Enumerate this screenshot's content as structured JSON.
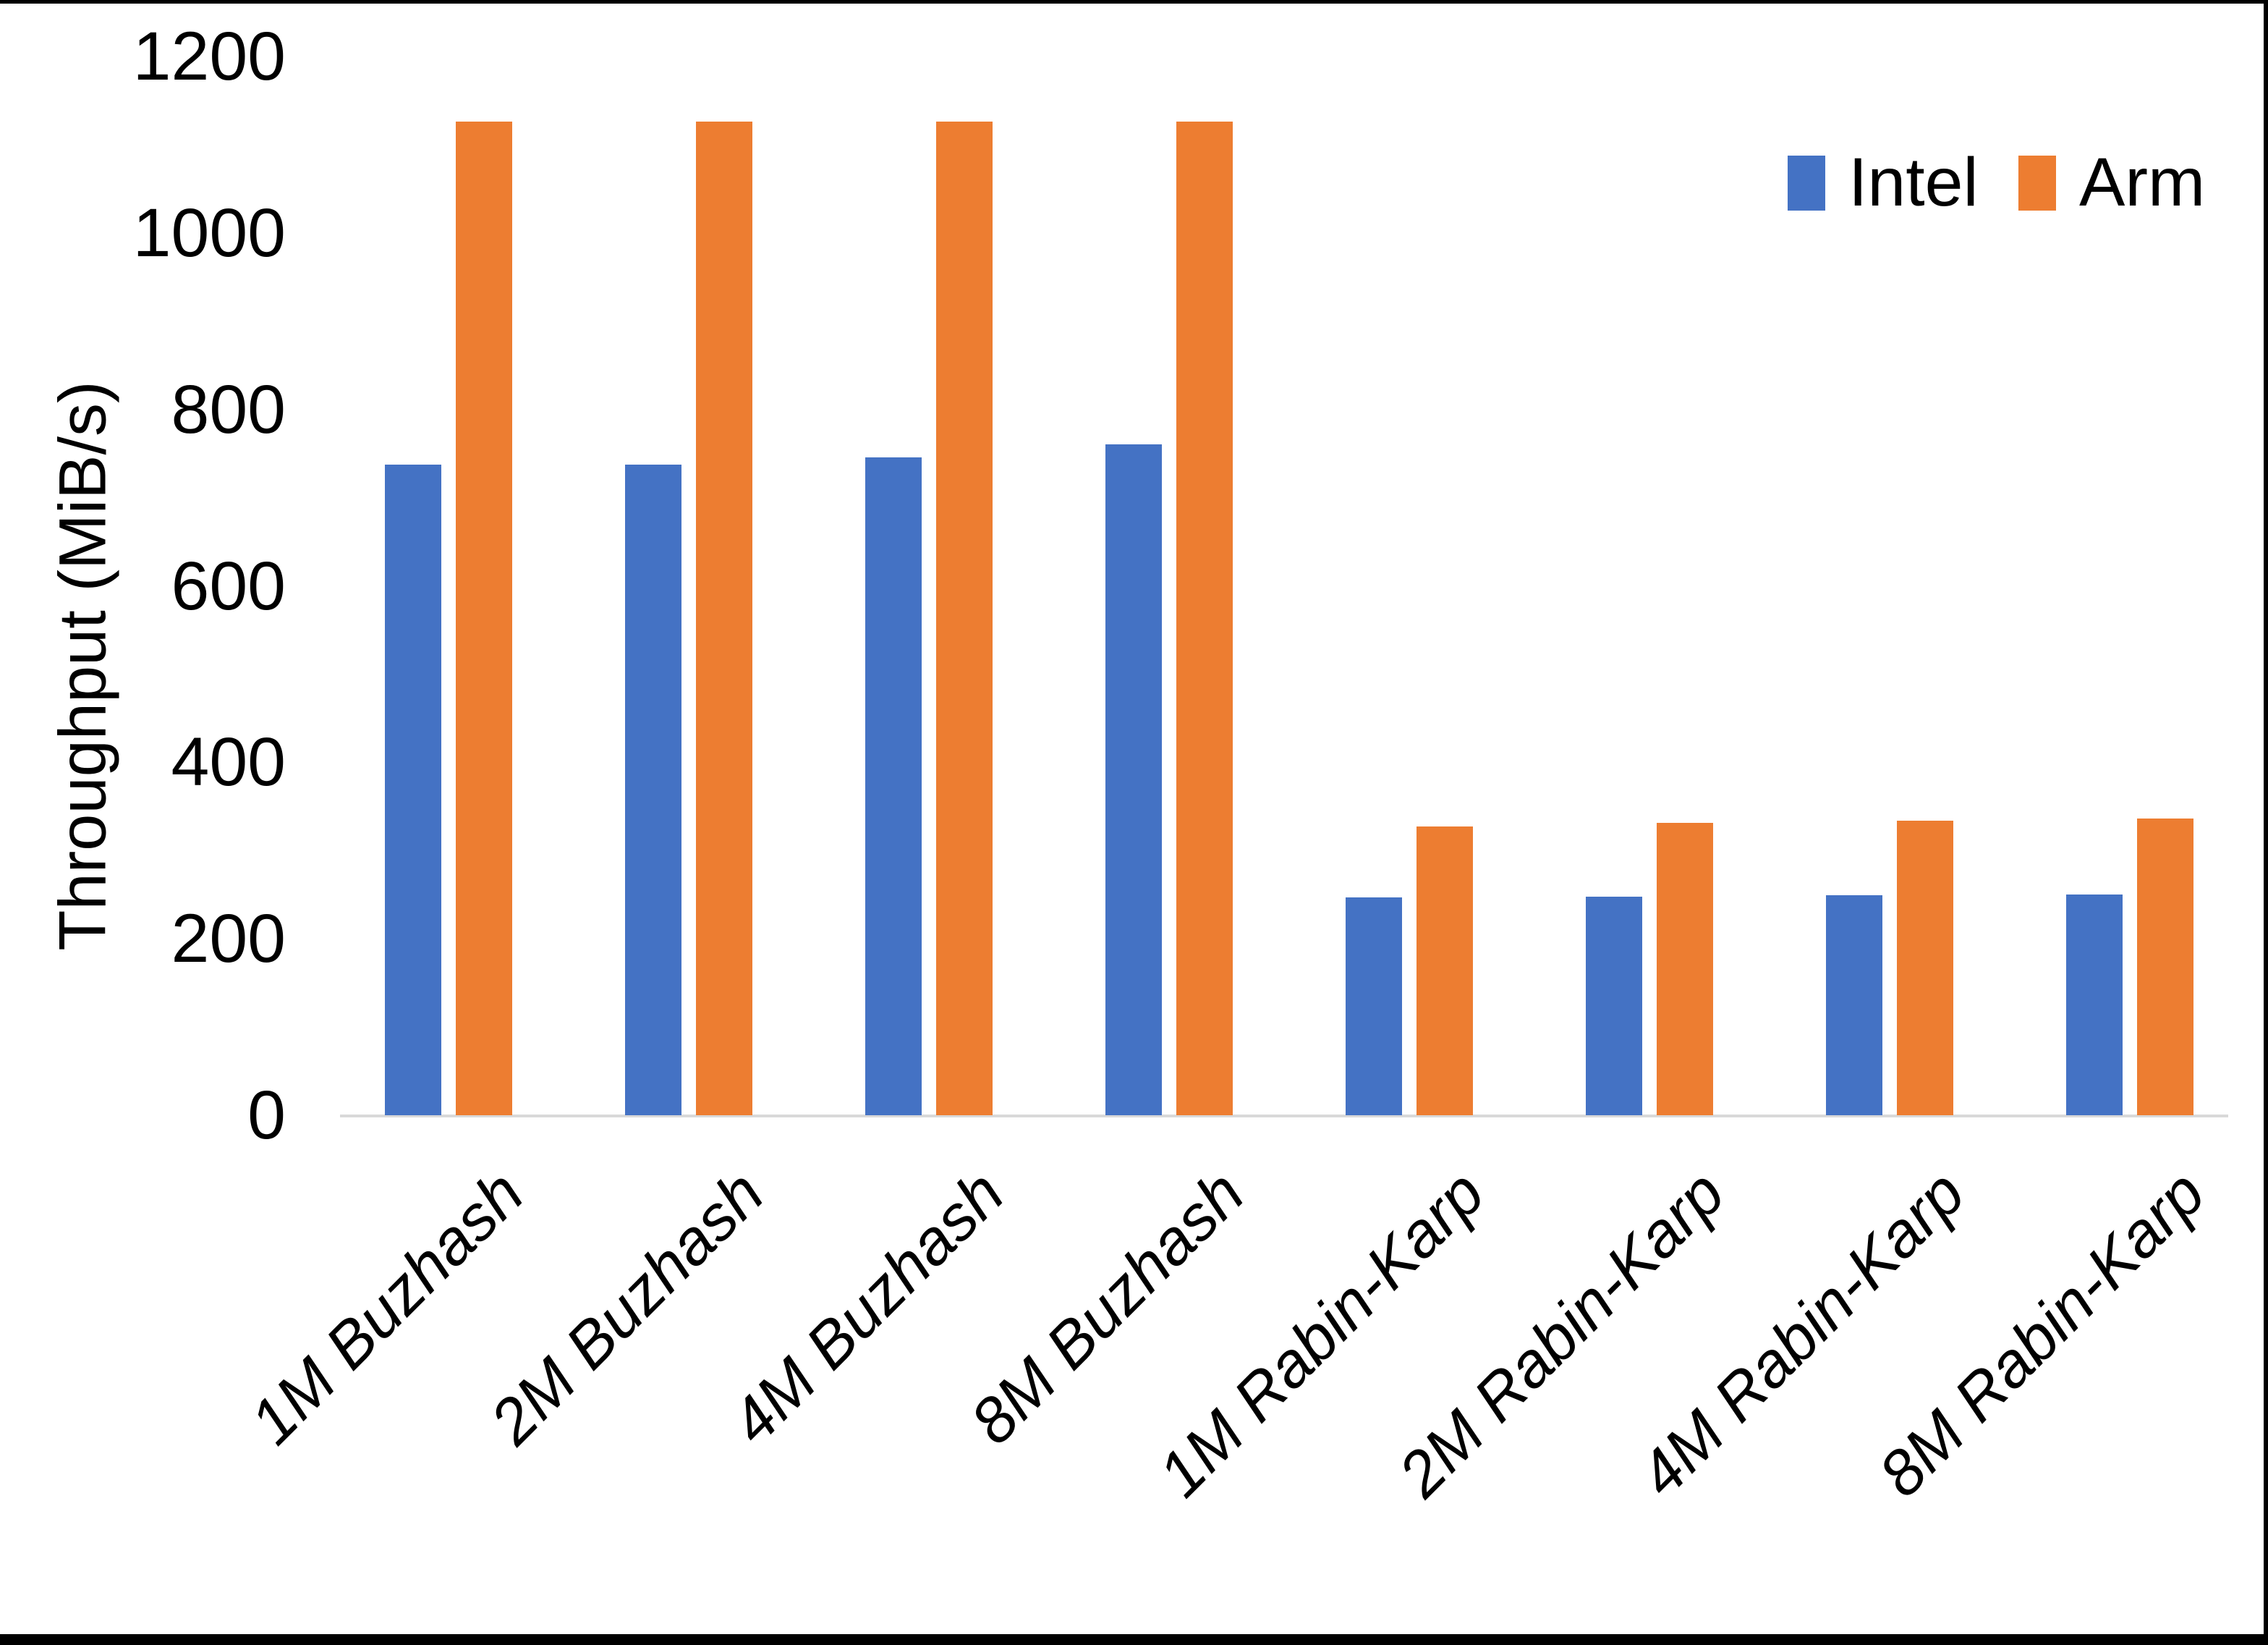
{
  "chart_data": {
    "type": "bar",
    "title": "",
    "xlabel": "",
    "ylabel": "Throughput (MiB/s)",
    "ylim": [
      0,
      1200
    ],
    "yticks": [
      0,
      200,
      400,
      600,
      800,
      1000,
      1200
    ],
    "grid": false,
    "legend_position": "top-right",
    "categories": [
      "1M Buzhash",
      "2M Buzhash",
      "4M Buzhash",
      "8M Buzhash",
      "1M Rabin-Karp",
      "2M Rabin-Karp",
      "4M Rabin-Karp",
      "8M Rabin-Karp"
    ],
    "series": [
      {
        "name": "Intel",
        "color": "#4472C4",
        "values": [
          737,
          737,
          746,
          760,
          247,
          248,
          249,
          250
        ]
      },
      {
        "name": "Arm",
        "color": "#ED7D31",
        "values": [
          1126,
          1126,
          1126,
          1126,
          327,
          331,
          334,
          336
        ]
      }
    ],
    "axis_line_color": "#D9D9D9",
    "text_color": "#000000"
  }
}
